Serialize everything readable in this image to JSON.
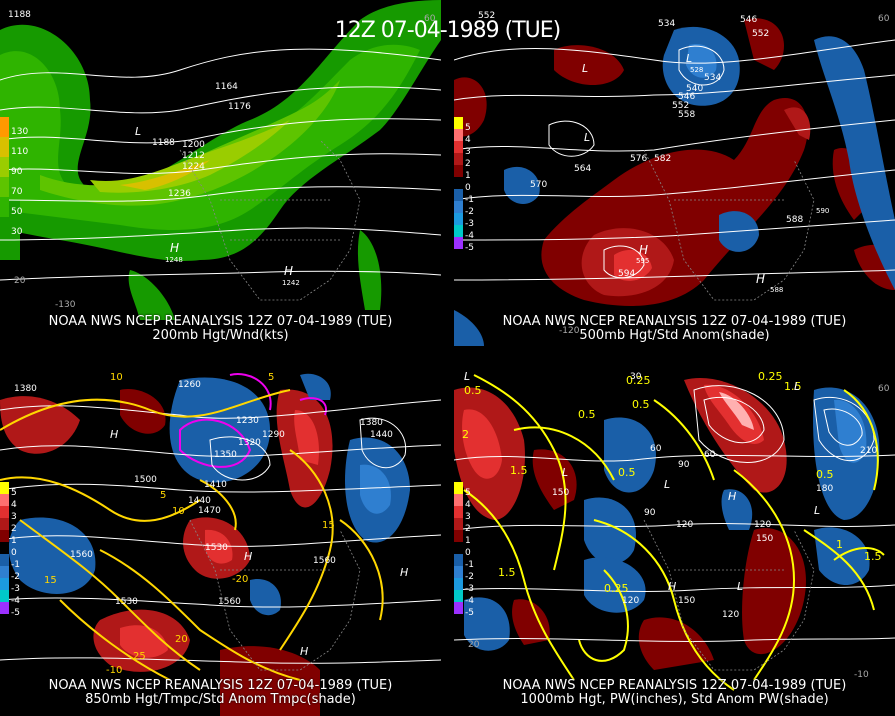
{
  "title": "12Z 07-04-1989 (TUE)",
  "panels": [
    {
      "id": "p200",
      "caption_line1": "NOAA NWS NCEP REANALYSIS 12Z 07-04-1989 (TUE)",
      "caption_line2": "200mb Hgt/Wnd(kts)",
      "legend": [
        {
          "label": "130",
          "color": "#ff9900"
        },
        {
          "label": "110",
          "color": "#d8c000"
        },
        {
          "label": "90",
          "color": "#9acd00"
        },
        {
          "label": "70",
          "color": "#5ec400"
        },
        {
          "label": "50",
          "color": "#2fb400"
        },
        {
          "label": "30",
          "color": "#169a00"
        }
      ],
      "labels": [
        "1188",
        "1164",
        "1176",
        "L",
        "1188",
        "1200",
        "1212",
        "1224",
        "1236",
        "H",
        "1248",
        "H",
        "1242",
        "-130",
        "20",
        "60"
      ]
    },
    {
      "id": "p500",
      "caption_line1": "NOAA NWS NCEP REANALYSIS 12Z 07-04-1989 (TUE)",
      "caption_line2": "500mb Hgt/Std Anom(shade)",
      "legend": [
        {
          "label": "5",
          "color": "#ffff00"
        },
        {
          "label": "4",
          "color": "#ff7070"
        },
        {
          "label": "3",
          "color": "#e33030"
        },
        {
          "label": "2",
          "color": "#b01818"
        },
        {
          "label": "1",
          "color": "#800000"
        },
        {
          "label": "0",
          "color": "#000000"
        },
        {
          "label": "-1",
          "color": "#1a5fa8"
        },
        {
          "label": "-2",
          "color": "#2f7fd0"
        },
        {
          "label": "-3",
          "color": "#1c9adf"
        },
        {
          "label": "-4",
          "color": "#00c8c8"
        },
        {
          "label": "-5",
          "color": "#9b30ff"
        }
      ],
      "labels": [
        "552",
        "534",
        "546",
        "552",
        "L",
        "528",
        "534",
        "540",
        "546",
        "552",
        "558",
        "L",
        "L",
        "570",
        "576",
        "582",
        "564",
        "588",
        "590",
        "H",
        "595",
        "594",
        "588",
        "H",
        "-120",
        "60"
      ]
    },
    {
      "id": "p850",
      "caption_line1": "NOAA NWS NCEP REANALYSIS 12Z 07-04-1989 (TUE)",
      "caption_line2": "850mb Hgt/Tmpc/Std Anom Tmpc(shade)",
      "legend": [
        {
          "label": "5",
          "color": "#ffff00"
        },
        {
          "label": "4",
          "color": "#ff7070"
        },
        {
          "label": "3",
          "color": "#e33030"
        },
        {
          "label": "2",
          "color": "#b01818"
        },
        {
          "label": "1",
          "color": "#800000"
        },
        {
          "label": "0",
          "color": "#000000"
        },
        {
          "label": "-1",
          "color": "#1a5fa8"
        },
        {
          "label": "-2",
          "color": "#2f7fd0"
        },
        {
          "label": "-3",
          "color": "#1c9adf"
        },
        {
          "label": "-4",
          "color": "#00c8c8"
        },
        {
          "label": "-5",
          "color": "#9b30ff"
        }
      ],
      "labels": [
        "10",
        "1260",
        "1380",
        "H",
        "1500",
        "1410",
        "1440",
        "1470",
        "1530",
        "1560",
        "1530",
        "1560",
        "1560",
        "H",
        "H",
        "H",
        "-20",
        "15",
        "20",
        "25",
        "5",
        "10",
        "15",
        "-10",
        "5",
        "1230",
        "1290",
        "1320",
        "1350",
        "1380",
        "1440"
      ]
    },
    {
      "id": "p1000",
      "caption_line1": "NOAA NWS NCEP REANALYSIS 12Z 07-04-1989 (TUE)",
      "caption_line2": "1000mb Hgt, PW(inches), Std Anom PW(shade)",
      "legend": [
        {
          "label": "5",
          "color": "#ffff00"
        },
        {
          "label": "4",
          "color": "#ff7070"
        },
        {
          "label": "3",
          "color": "#e33030"
        },
        {
          "label": "2",
          "color": "#b01818"
        },
        {
          "label": "1",
          "color": "#800000"
        },
        {
          "label": "0",
          "color": "#000000"
        },
        {
          "label": "-1",
          "color": "#1a5fa8"
        },
        {
          "label": "-2",
          "color": "#2f7fd0"
        },
        {
          "label": "-3",
          "color": "#1c9adf"
        },
        {
          "label": "-4",
          "color": "#00c8c8"
        },
        {
          "label": "-5",
          "color": "#9b30ff"
        }
      ],
      "labels": [
        "0.5",
        "0.25",
        "1.5",
        "2",
        "1.5",
        "0.5",
        "0.5",
        "L",
        "L",
        "L",
        "L",
        "L",
        "H",
        "H",
        "150",
        "60",
        "90",
        "120",
        "150",
        "120",
        "150",
        "120",
        "120",
        "0.25",
        "0.5",
        "1.5",
        "1",
        "1.5",
        "0.5",
        "0.25",
        "210",
        "180",
        "30",
        "60",
        "90",
        "L",
        "20",
        "60",
        "-10"
      ]
    }
  ]
}
